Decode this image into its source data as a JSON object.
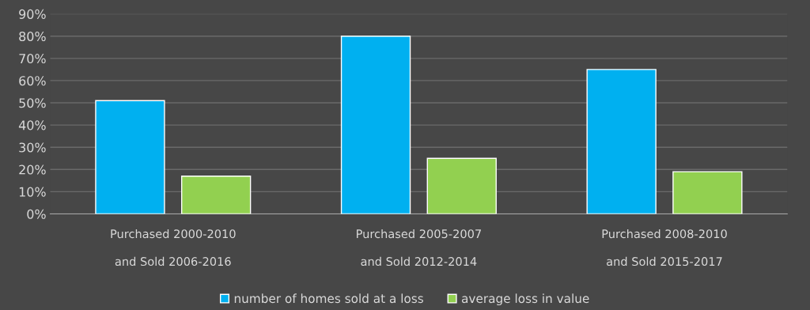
{
  "chart_data": {
    "type": "bar",
    "categories": [
      "Purchased 2000-2010\n\nand Sold 2006-2016",
      "Purchased 2005-2007\n\nand Sold 2012-2014",
      "Purchased 2008-2010\n\nand Sold 2015-2017"
    ],
    "series": [
      {
        "name": "number of homes sold at a loss",
        "color": "#00b0f0",
        "values": [
          51,
          80,
          65
        ]
      },
      {
        "name": "average loss in value",
        "color": "#92d050",
        "values": [
          17,
          25,
          19
        ]
      }
    ],
    "ylim": [
      0,
      90
    ],
    "yticks": [
      {
        "value": 0,
        "label": "0%"
      },
      {
        "value": 10,
        "label": "10%"
      },
      {
        "value": 20,
        "label": "20%"
      },
      {
        "value": 30,
        "label": "30%"
      },
      {
        "value": 40,
        "label": "40%"
      },
      {
        "value": 50,
        "label": "50%"
      },
      {
        "value": 60,
        "label": "60%"
      },
      {
        "value": 70,
        "label": "70%"
      },
      {
        "value": 80,
        "label": "80%"
      },
      {
        "value": 90,
        "label": "90%"
      }
    ],
    "grid": "y",
    "legend": "bottom"
  }
}
